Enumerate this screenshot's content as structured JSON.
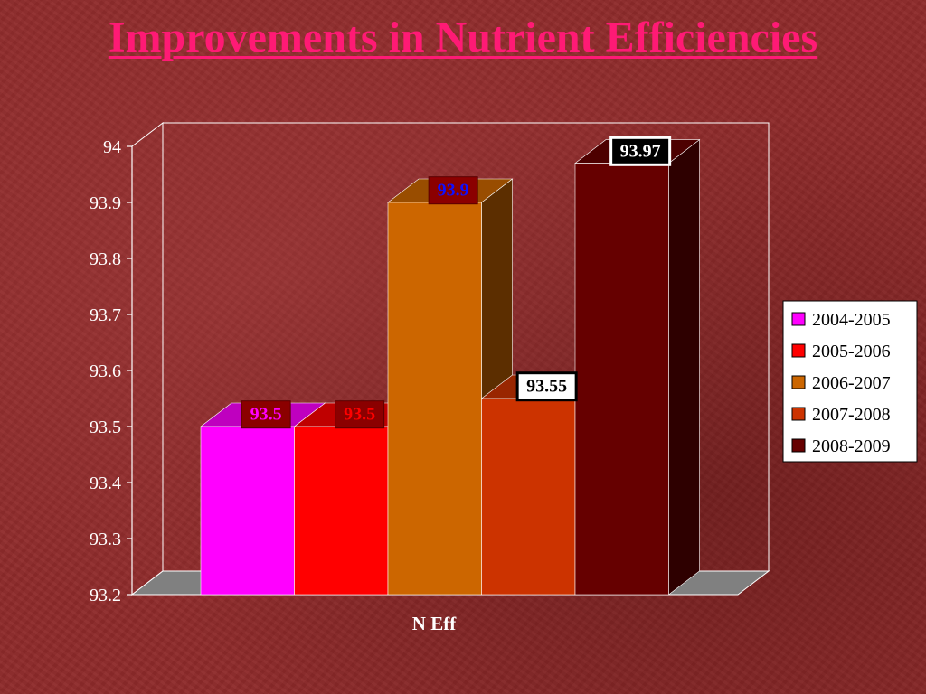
{
  "slide": {
    "title": "Improvements in Nutrient Efficiencies"
  },
  "chart_data": {
    "type": "bar",
    "style": "3d-clustered-column",
    "categories": [
      "N Eff"
    ],
    "xlabel": "N Eff",
    "ylabel": "",
    "ylim": [
      93.2,
      94
    ],
    "yticks": [
      "93.2",
      "93.3",
      "93.4",
      "93.5",
      "93.6",
      "93.7",
      "93.8",
      "93.9",
      "94"
    ],
    "grid": false,
    "legend_position": "right",
    "series": [
      {
        "name": "2004-2005",
        "values": [
          93.5
        ],
        "label": "93.5",
        "color": "#ff00ff",
        "label_text_color": "#ff00ff",
        "label_box_color": "#8b0000"
      },
      {
        "name": "2005-2006",
        "values": [
          93.5
        ],
        "label": "93.5",
        "color": "#ff0000",
        "label_text_color": "#ff0000",
        "label_box_color": "#8b0000"
      },
      {
        "name": "2006-2007",
        "values": [
          93.9
        ],
        "label": "93.9",
        "color": "#cc6600",
        "label_text_color": "#1010ff",
        "label_box_color": "#8b0000"
      },
      {
        "name": "2007-2008",
        "values": [
          93.55
        ],
        "label": "93.55",
        "color": "#cc3300",
        "label_text_color": "#000000",
        "label_box_color": "#ffffff"
      },
      {
        "name": "2008-2009",
        "values": [
          93.97
        ],
        "label": "93.97",
        "color": "#660000",
        "label_text_color": "#ffffff",
        "label_box_color": "#000000"
      }
    ]
  }
}
